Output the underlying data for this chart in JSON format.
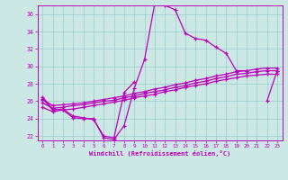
{
  "xlabel": "Windchill (Refroidissement éolien,°C)",
  "xlim": [
    -0.5,
    23.5
  ],
  "ylim": [
    21.5,
    37.0
  ],
  "xticks": [
    0,
    1,
    2,
    3,
    4,
    5,
    6,
    7,
    8,
    9,
    10,
    11,
    12,
    13,
    14,
    15,
    16,
    17,
    18,
    19,
    20,
    21,
    22,
    23
  ],
  "yticks": [
    22,
    24,
    26,
    28,
    30,
    32,
    34,
    36
  ],
  "bg_color": "#cce8e4",
  "line_color": "#bb00bb",
  "grid_color": "#99cccc",
  "hours": [
    0,
    1,
    2,
    3,
    4,
    5,
    6,
    7,
    8,
    9,
    10,
    11,
    12,
    13,
    14,
    15,
    16,
    17,
    18,
    19,
    20,
    21,
    22,
    23
  ],
  "line1": [
    26.5,
    25.1,
    25.0,
    24.1,
    24.0,
    24.0,
    21.8,
    21.6,
    23.2,
    27.5,
    30.8,
    37.2,
    37.0,
    36.5,
    33.8,
    33.2,
    33.0,
    32.2,
    31.5,
    29.5,
    29.5,
    null,
    26.0,
    29.5
  ],
  "line2": [
    26.3,
    25.0,
    25.1,
    24.3,
    24.1,
    23.9,
    22.0,
    21.8,
    27.0,
    28.2,
    null,
    null,
    null,
    null,
    null,
    null,
    null,
    null,
    null,
    null,
    null,
    null,
    null,
    null
  ],
  "line3": [
    26.2,
    25.5,
    25.6,
    25.7,
    25.8,
    26.0,
    26.2,
    26.4,
    26.6,
    26.9,
    27.1,
    27.4,
    27.6,
    27.9,
    28.1,
    28.4,
    28.6,
    28.9,
    29.1,
    29.4,
    29.5,
    29.7,
    29.8,
    29.8
  ],
  "line4": [
    25.8,
    25.2,
    25.3,
    25.5,
    25.6,
    25.8,
    26.0,
    26.1,
    26.4,
    26.6,
    26.9,
    27.1,
    27.3,
    27.6,
    27.8,
    28.1,
    28.3,
    28.6,
    28.8,
    29.1,
    29.2,
    29.4,
    29.5,
    29.5
  ],
  "line5": [
    25.3,
    24.8,
    25.0,
    25.1,
    25.3,
    25.5,
    25.7,
    25.9,
    26.1,
    26.4,
    26.6,
    26.8,
    27.1,
    27.3,
    27.6,
    27.8,
    28.0,
    28.3,
    28.5,
    28.7,
    28.9,
    29.0,
    29.1,
    29.1
  ]
}
